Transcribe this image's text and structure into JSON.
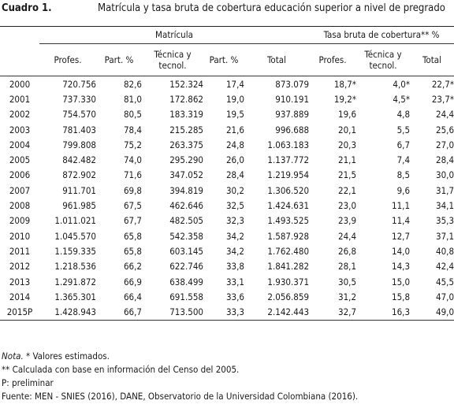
{
  "header": {
    "cuadro": "Cuadro 1.",
    "title": "Matrícula y tasa bruta de cobertura educación superior a nivel de pregrado"
  },
  "table": {
    "groups": {
      "matricula": "Matrícula",
      "tasa": "Tasa bruta de cobertura** %"
    },
    "columns": [
      "",
      "Profes.",
      "Part. %",
      "Técnica y tecnol.",
      "Part. %",
      "Total",
      "Profes.",
      "Técnica y tecnol.",
      "Total"
    ],
    "rows": [
      [
        "2000",
        "720.756",
        "82,6",
        "152.324",
        "17,4",
        "873.079",
        "18,7*",
        "4,0*",
        "22,7*"
      ],
      [
        "2001",
        "737.330",
        "81,0",
        "172.862",
        "19,0",
        "910.191",
        "19,2*",
        "4,5*",
        "23,7*"
      ],
      [
        "2002",
        "754.570",
        "80,5",
        "183.319",
        "19,5",
        "937.889",
        "19,6",
        "4,8",
        "24,4"
      ],
      [
        "2003",
        "781.403",
        "78,4",
        "215.285",
        "21,6",
        "996.688",
        "20,1",
        "5,5",
        "25,6"
      ],
      [
        "2004",
        "799.808",
        "75,2",
        "263.375",
        "24,8",
        "1.063.183",
        "20,3",
        "6,7",
        "27,0"
      ],
      [
        "2005",
        "842.482",
        "74,0",
        "295.290",
        "26,0",
        "1.137.772",
        "21,1",
        "7,4",
        "28,4"
      ],
      [
        "2006",
        "872.902",
        "71,6",
        "347.052",
        "28,4",
        "1.219.954",
        "21,5",
        "8,5",
        "30,0"
      ],
      [
        "2007",
        "911.701",
        "69,8",
        "394.819",
        "30,2",
        "1.306.520",
        "22,1",
        "9,6",
        "31,7"
      ],
      [
        "2008",
        "961.985",
        "67,5",
        "462.646",
        "32,5",
        "1.424.631",
        "23,0",
        "11,1",
        "34,1"
      ],
      [
        "2009",
        "1.011.021",
        "67,7",
        "482.505",
        "32,3",
        "1.493.525",
        "23,9",
        "11,4",
        "35,3"
      ],
      [
        "2010",
        "1.045.570",
        "65,8",
        "542.358",
        "34,2",
        "1.587.928",
        "24,4",
        "12,7",
        "37,1"
      ],
      [
        "2011",
        "1.159.335",
        "65,8",
        "603.145",
        "34,2",
        "1.762.480",
        "26,8",
        "14,0",
        "40,8"
      ],
      [
        "2012",
        "1.218.536",
        "66,2",
        "622.746",
        "33,8",
        "1.841.282",
        "28,1",
        "14,3",
        "42,4"
      ],
      [
        "2013",
        "1.291.872",
        "66,9",
        "638.499",
        "33,1",
        "1.930.371",
        "30,5",
        "15,0",
        "45,5"
      ],
      [
        "2014",
        "1.365.301",
        "66,4",
        "691.558",
        "33,6",
        "2.056.859",
        "31,2",
        "15,8",
        "47,0"
      ],
      [
        "2015P",
        "1.428.943",
        "66,7",
        "713.500",
        "33,3",
        "2.142.443",
        "32,7",
        "16,3",
        "49,0"
      ]
    ]
  },
  "notes": {
    "nota_label": "Nota.",
    "nota_text": "* Valores estimados.",
    "censo": "** Calculada con base en información del Censo del 2005.",
    "preliminar": "P: preliminar",
    "fuente": "Fuente: MEN - SNIES (2016), DANE, Observatorio de la Universidad Colombiana (2016)."
  }
}
